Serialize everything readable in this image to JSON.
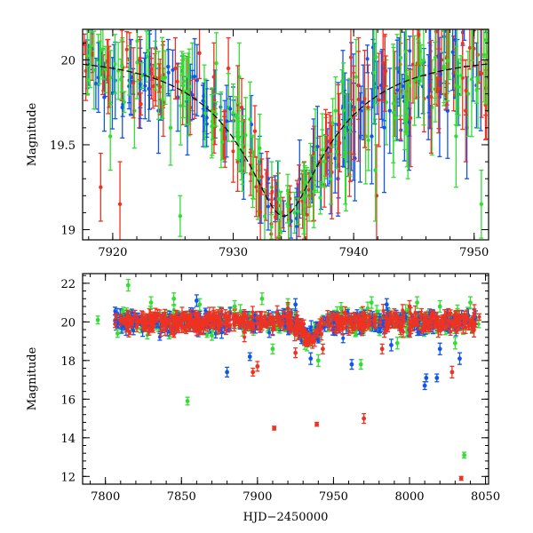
{
  "chart_data": [
    {
      "type": "scatter",
      "panel": "top",
      "xlabel": "",
      "ylabel": "Magnitude",
      "xlim": [
        7917.5,
        7951.2
      ],
      "ylim": [
        20.18,
        18.94
      ],
      "y_inverted": true,
      "x_ticks": [
        7920,
        7930,
        7940,
        7950
      ],
      "y_ticks": [
        19,
        19.5,
        20
      ],
      "y_tick_labels": [
        "19",
        "19.5",
        "20"
      ],
      "grid": false,
      "legend": "none",
      "colors": {
        "red": "#ee3322",
        "green": "#33dd33",
        "blue": "#1155ee",
        "curve": "#000000"
      },
      "fit_curve": {
        "style": "dashed",
        "model": "single-lens microlensing",
        "peak_x": 7934.2,
        "peak_mag": 19.08,
        "baseline_mag": 20.02,
        "tE": 9.0,
        "u0": 0.24
      },
      "series": [
        {
          "color_key": "blue",
          "points": [
            [
              7918.0,
              19.97,
              0.12
            ],
            [
              7918.6,
              19.86,
              0.15
            ],
            [
              7919.3,
              19.78,
              0.2
            ],
            [
              7920.1,
              19.95,
              0.14
            ],
            [
              7920.8,
              19.72,
              0.18
            ],
            [
              7921.5,
              19.9,
              0.22
            ],
            [
              7922.3,
              19.99,
              0.13
            ],
            [
              7923.0,
              19.83,
              0.19
            ],
            [
              7923.8,
              19.7,
              0.25
            ],
            [
              7924.6,
              19.96,
              0.16
            ],
            [
              7925.4,
              19.78,
              0.2
            ],
            [
              7926.2,
              19.62,
              0.18
            ],
            [
              7927.0,
              19.88,
              0.21
            ],
            [
              7927.8,
              19.66,
              0.17
            ],
            [
              7928.5,
              19.74,
              0.2
            ],
            [
              7929.3,
              19.58,
              0.18
            ],
            [
              7930.0,
              19.68,
              0.16
            ],
            [
              7930.8,
              19.52,
              0.19
            ],
            [
              7931.5,
              19.62,
              0.17
            ],
            [
              7932.2,
              19.4,
              0.15
            ],
            [
              7932.9,
              19.3,
              0.12
            ],
            [
              7933.6,
              19.18,
              0.1
            ],
            [
              7934.2,
              19.08,
              0.09
            ],
            [
              7934.8,
              19.05,
              0.1
            ],
            [
              7935.4,
              19.15,
              0.12
            ],
            [
              7936.0,
              19.22,
              0.13
            ],
            [
              7936.6,
              19.35,
              0.14
            ],
            [
              7937.3,
              19.28,
              0.16
            ],
            [
              7938.0,
              19.45,
              0.18
            ],
            [
              7938.7,
              19.3,
              0.22
            ],
            [
              7939.4,
              19.6,
              0.2
            ],
            [
              7940.1,
              19.42,
              0.25
            ],
            [
              7940.8,
              19.75,
              0.22
            ],
            [
              7941.5,
              19.55,
              0.28
            ],
            [
              7942.3,
              19.85,
              0.2
            ],
            [
              7943.0,
              19.7,
              0.25
            ],
            [
              7943.8,
              19.95,
              0.18
            ],
            [
              7944.6,
              19.65,
              0.3
            ],
            [
              7945.4,
              19.88,
              0.22
            ],
            [
              7946.2,
              19.78,
              0.25
            ],
            [
              7947.0,
              20.02,
              0.2
            ],
            [
              7947.8,
              19.7,
              0.28
            ],
            [
              7948.6,
              19.9,
              0.22
            ],
            [
              7949.4,
              19.6,
              0.3
            ],
            [
              7950.2,
              19.85,
              0.25
            ]
          ]
        },
        {
          "color_key": "red",
          "points": [
            [
              7918.3,
              20.03,
              0.15
            ],
            [
              7919.0,
              19.25,
              0.2
            ],
            [
              7919.7,
              19.9,
              0.18
            ],
            [
              7920.6,
              19.15,
              0.25
            ],
            [
              7921.4,
              20.0,
              0.16
            ],
            [
              7922.2,
              19.8,
              0.2
            ],
            [
              7923.2,
              19.92,
              0.15
            ],
            [
              7924.2,
              19.75,
              0.2
            ],
            [
              7925.2,
              19.95,
              0.18
            ],
            [
              7926.2,
              19.82,
              0.2
            ],
            [
              7927.2,
              20.04,
              0.15
            ],
            [
              7928.4,
              19.9,
              0.2
            ],
            [
              7929.6,
              19.95,
              0.18
            ],
            [
              7930.7,
              19.72,
              0.17
            ],
            [
              7931.8,
              19.58,
              0.15
            ],
            [
              7932.8,
              19.33,
              0.13
            ],
            [
              7933.6,
              19.16,
              0.1
            ],
            [
              7934.1,
              19.1,
              0.09
            ],
            [
              7934.7,
              19.12,
              0.1
            ],
            [
              7935.3,
              19.18,
              0.11
            ],
            [
              7935.9,
              19.28,
              0.12
            ],
            [
              7936.5,
              19.31,
              0.13
            ],
            [
              7937.2,
              19.4,
              0.15
            ],
            [
              7938.0,
              19.52,
              0.17
            ],
            [
              7938.8,
              19.62,
              0.18
            ],
            [
              7939.6,
              19.58,
              0.22
            ],
            [
              7940.4,
              19.85,
              0.2
            ],
            [
              7941.2,
              19.72,
              0.25
            ],
            [
              7941.9,
              19.2,
              0.3
            ],
            [
              7942.6,
              19.95,
              0.2
            ],
            [
              7943.4,
              19.8,
              0.25
            ],
            [
              7944.4,
              19.9,
              0.22
            ],
            [
              7945.3,
              19.98,
              0.2
            ],
            [
              7946.3,
              19.85,
              0.25
            ],
            [
              7947.3,
              20.0,
              0.2
            ],
            [
              7948.3,
              19.92,
              0.22
            ],
            [
              7949.3,
              19.7,
              0.3
            ],
            [
              7950.3,
              20.03,
              0.2
            ]
          ]
        },
        {
          "color_key": "green",
          "points": [
            [
              7918.8,
              20.0,
              0.15
            ],
            [
              7919.8,
              19.55,
              0.2
            ],
            [
              7920.8,
              19.95,
              0.18
            ],
            [
              7921.8,
              19.7,
              0.22
            ],
            [
              7922.8,
              20.02,
              0.15
            ],
            [
              7923.8,
              19.85,
              0.2
            ],
            [
              7924.8,
              19.6,
              0.22
            ],
            [
              7925.6,
              19.08,
              0.12
            ],
            [
              7926.6,
              19.9,
              0.2
            ],
            [
              7927.6,
              19.75,
              0.22
            ],
            [
              7928.6,
              19.98,
              0.18
            ],
            [
              7929.6,
              19.72,
              0.2
            ],
            [
              7930.5,
              19.9,
              0.2
            ],
            [
              7931.4,
              19.65,
              0.22
            ],
            [
              7932.2,
              19.48,
              0.2
            ],
            [
              7933.2,
              19.25,
              0.15
            ],
            [
              7933.9,
              19.1,
              0.12
            ],
            [
              7934.5,
              19.15,
              0.11
            ],
            [
              7935.1,
              19.1,
              0.12
            ],
            [
              7935.7,
              19.22,
              0.13
            ],
            [
              7936.3,
              19.2,
              0.15
            ],
            [
              7937.0,
              19.38,
              0.16
            ],
            [
              7937.7,
              19.48,
              0.18
            ],
            [
              7938.5,
              19.7,
              0.2
            ],
            [
              7939.3,
              19.4,
              0.25
            ],
            [
              7940.2,
              19.9,
              0.22
            ],
            [
              7941.0,
              19.55,
              0.28
            ],
            [
              7941.8,
              19.35,
              0.3
            ],
            [
              7942.7,
              19.75,
              0.25
            ],
            [
              7943.6,
              19.95,
              0.2
            ],
            [
              7944.5,
              19.6,
              0.3
            ],
            [
              7945.5,
              20.05,
              0.2
            ],
            [
              7946.5,
              19.72,
              0.28
            ],
            [
              7947.5,
              19.95,
              0.22
            ],
            [
              7948.5,
              19.55,
              0.3
            ],
            [
              7949.5,
              19.8,
              0.25
            ],
            [
              7950.6,
              19.15,
              0.2
            ]
          ]
        }
      ]
    },
    {
      "type": "scatter",
      "panel": "bottom",
      "xlabel": "HJD−2450000",
      "ylabel": "Magnitude",
      "xlim": [
        7785,
        8052
      ],
      "ylim": [
        22.5,
        11.6
      ],
      "y_inverted": true,
      "x_ticks": [
        7800,
        7850,
        7900,
        7950,
        8000,
        8050
      ],
      "y_ticks": [
        12,
        14,
        16,
        18,
        20,
        22
      ],
      "y_tick_labels": [
        "12",
        "14",
        "16",
        "18",
        "20",
        "22"
      ],
      "grid": false,
      "legend": "none",
      "colors": {
        "red": "#ee3322",
        "green": "#33dd33",
        "blue": "#1155ee"
      },
      "baseline": {
        "x_start": 7806,
        "x_end": 8046,
        "mag": 20.0,
        "scatter": 0.35,
        "bump_x": 7934,
        "bump_mag": 19.1
      },
      "series": [
        {
          "color_key": "green",
          "points": [
            [
              7795,
              20.1,
              0.2
            ],
            [
              7808,
              19.4,
              0.2
            ],
            [
              7815,
              21.9,
              0.3
            ],
            [
              7830,
              21.0,
              0.3
            ],
            [
              7845,
              21.2,
              0.3
            ],
            [
              7854,
              15.9,
              0.2
            ],
            [
              7862,
              20.9,
              0.3
            ],
            [
              7870,
              19.3,
              0.25
            ],
            [
              7885,
              20.8,
              0.3
            ],
            [
              7903,
              21.2,
              0.3
            ],
            [
              7910,
              18.6,
              0.25
            ],
            [
              7920,
              20.9,
              0.3
            ],
            [
              7940,
              18.0,
              0.3
            ],
            [
              7955,
              20.7,
              0.3
            ],
            [
              7968,
              17.8,
              0.25
            ],
            [
              7975,
              21.0,
              0.3
            ],
            [
              7992,
              18.9,
              0.3
            ],
            [
              8005,
              21.0,
              0.3
            ],
            [
              8020,
              20.8,
              0.3
            ],
            [
              8030,
              18.9,
              0.3
            ],
            [
              8036,
              13.1,
              0.15
            ],
            [
              8040,
              21.0,
              0.3
            ]
          ]
        },
        {
          "color_key": "red",
          "points": [
            [
              7897,
              17.4,
              0.2
            ],
            [
              7900,
              17.7,
              0.25
            ],
            [
              7911,
              14.5,
              0.1
            ],
            [
              7925,
              18.4,
              0.25
            ],
            [
              7939,
              14.7,
              0.1
            ],
            [
              7943,
              18.6,
              0.25
            ],
            [
              7970,
              15.0,
              0.25
            ],
            [
              7982,
              18.6,
              0.25
            ],
            [
              8028,
              17.4,
              0.3
            ],
            [
              8034,
              11.9,
              0.1
            ],
            [
              7920,
              20.7,
              0.3
            ],
            [
              8000,
              20.8,
              0.3
            ]
          ]
        },
        {
          "color_key": "blue",
          "points": [
            [
              7880,
              17.4,
              0.25
            ],
            [
              7895,
              18.2,
              0.2
            ],
            [
              7925,
              20.9,
              0.3
            ],
            [
              7935,
              18.1,
              0.3
            ],
            [
              7962,
              17.8,
              0.25
            ],
            [
              7988,
              18.8,
              0.3
            ],
            [
              8010,
              16.7,
              0.2
            ],
            [
              8011,
              17.1,
              0.2
            ],
            [
              8018,
              17.1,
              0.2
            ],
            [
              8020,
              18.6,
              0.3
            ],
            [
              8033,
              18.1,
              0.3
            ],
            [
              7860,
              21.1,
              0.3
            ],
            [
              7985,
              20.9,
              0.3
            ]
          ]
        }
      ]
    }
  ]
}
